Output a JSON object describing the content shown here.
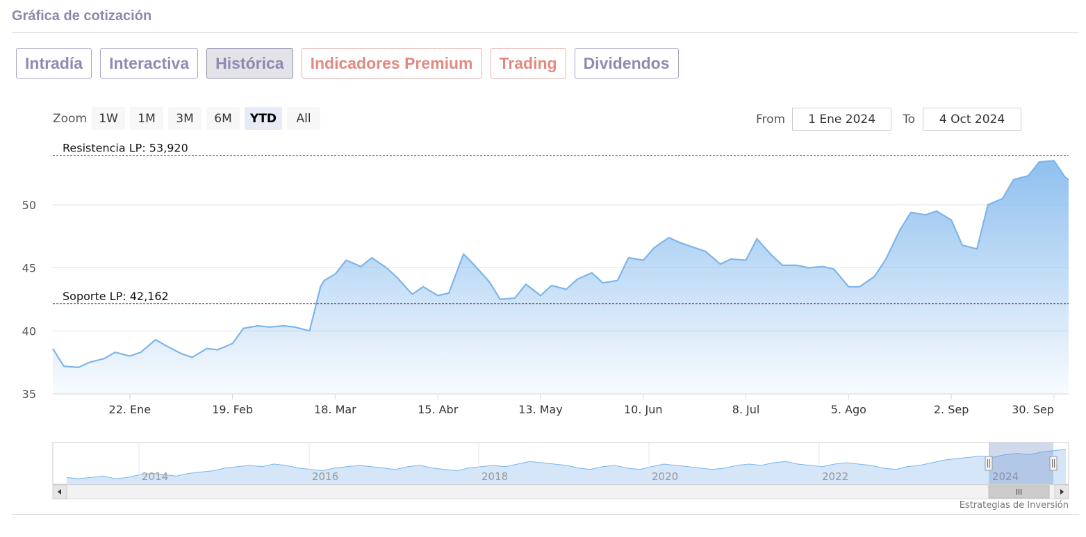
{
  "header": {
    "title": "Gráfica de cotización"
  },
  "tabs": [
    {
      "label": "Intradía",
      "state": "normal"
    },
    {
      "label": "Interactiva",
      "state": "normal"
    },
    {
      "label": "Histórica",
      "state": "active"
    },
    {
      "label": "Indicadores Premium",
      "state": "premium"
    },
    {
      "label": "Trading",
      "state": "premium"
    },
    {
      "label": "Dividendos",
      "state": "normal"
    }
  ],
  "zoom": {
    "label": "Zoom",
    "buttons": [
      "1W",
      "1M",
      "3M",
      "6M",
      "YTD",
      "All"
    ],
    "selected": "YTD"
  },
  "range": {
    "from_label": "From",
    "from_value": "1 Ene 2024",
    "to_label": "To",
    "to_value": "4 Oct 2024"
  },
  "credits": "Estrategias de Inversión",
  "colors": {
    "line": "#7cb5ec",
    "resistance": "#1a8a1a",
    "support": "#8b1a1a",
    "tab_text": "#8e8bb2",
    "premium_text": "#e28a80"
  },
  "chart_data": {
    "type": "area",
    "x_start": "2024-01-01",
    "x_end": "2024-10-04",
    "x_tick_labels": [
      "22. Ene",
      "19. Feb",
      "18. Mar",
      "15. Abr",
      "13. May",
      "10. Jun",
      "8. Jul",
      "5. Ago",
      "2. Sep",
      "30. Sep"
    ],
    "x_tick_dates": [
      "2024-01-22",
      "2024-02-19",
      "2024-03-18",
      "2024-04-15",
      "2024-05-13",
      "2024-06-10",
      "2024-07-08",
      "2024-08-05",
      "2024-09-02",
      "2024-09-30"
    ],
    "y_ticks": [
      35,
      40,
      45,
      50
    ],
    "ylim": [
      35,
      55.5
    ],
    "grid": true,
    "plot_lines": [
      {
        "label": "Resistencia LP: 53,920",
        "value": 53.92,
        "style": "dashed",
        "color": "#1a8a1a"
      },
      {
        "label": "Soporte LP: 42,162",
        "value": 42.162,
        "style": "dashed",
        "color": "#8b1a1a"
      }
    ],
    "series": [
      {
        "x": [
          "2024-01-01",
          "2024-01-04",
          "2024-01-08",
          "2024-01-11",
          "2024-01-15",
          "2024-01-18",
          "2024-01-22",
          "2024-01-25",
          "2024-01-29",
          "2024-02-01",
          "2024-02-05",
          "2024-02-08",
          "2024-02-12",
          "2024-02-15",
          "2024-02-19",
          "2024-02-22",
          "2024-02-26",
          "2024-02-29",
          "2024-03-04",
          "2024-03-07",
          "2024-03-11",
          "2024-03-14",
          "2024-03-15",
          "2024-03-18",
          "2024-03-21",
          "2024-03-25",
          "2024-03-28",
          "2024-04-01",
          "2024-04-04",
          "2024-04-08",
          "2024-04-11",
          "2024-04-15",
          "2024-04-18",
          "2024-04-22",
          "2024-04-25",
          "2024-04-29",
          "2024-05-02",
          "2024-05-06",
          "2024-05-09",
          "2024-05-13",
          "2024-05-16",
          "2024-05-20",
          "2024-05-23",
          "2024-05-27",
          "2024-05-30",
          "2024-06-03",
          "2024-06-06",
          "2024-06-10",
          "2024-06-13",
          "2024-06-17",
          "2024-06-20",
          "2024-06-24",
          "2024-06-27",
          "2024-07-01",
          "2024-07-04",
          "2024-07-08",
          "2024-07-11",
          "2024-07-15",
          "2024-07-18",
          "2024-07-22",
          "2024-07-25",
          "2024-07-29",
          "2024-08-01",
          "2024-08-05",
          "2024-08-08",
          "2024-08-12",
          "2024-08-15",
          "2024-08-19",
          "2024-08-22",
          "2024-08-26",
          "2024-08-29",
          "2024-09-02",
          "2024-09-05",
          "2024-09-09",
          "2024-09-12",
          "2024-09-16",
          "2024-09-19",
          "2024-09-23",
          "2024-09-26",
          "2024-09-30",
          "2024-10-03",
          "2024-10-04"
        ],
        "values": [
          38.6,
          37.2,
          37.1,
          37.5,
          37.8,
          38.3,
          38.0,
          38.3,
          39.3,
          38.8,
          38.2,
          37.9,
          38.6,
          38.5,
          39.0,
          40.2,
          40.4,
          40.3,
          40.4,
          40.3,
          40.0,
          43.5,
          44.0,
          44.5,
          45.6,
          45.1,
          45.8,
          45.0,
          44.2,
          42.9,
          43.5,
          42.8,
          43.0,
          46.1,
          45.2,
          43.9,
          42.5,
          42.6,
          43.7,
          42.8,
          43.6,
          43.3,
          44.1,
          44.6,
          43.8,
          44.0,
          45.8,
          45.6,
          46.6,
          47.4,
          47.0,
          46.6,
          46.3,
          45.3,
          45.7,
          45.6,
          47.3,
          46.0,
          45.2,
          45.2,
          45.0,
          45.1,
          44.9,
          43.5,
          43.5,
          44.3,
          45.6,
          48.0,
          49.4,
          49.2,
          49.5,
          48.8,
          46.8,
          46.5,
          50.0,
          50.5,
          52.0,
          52.3,
          53.4,
          53.5,
          52.2,
          52.0
        ]
      }
    ],
    "navigator": {
      "year_labels": [
        "2014",
        "2016",
        "2018",
        "2020",
        "2022",
        "2024"
      ],
      "values": [
        34,
        33,
        34,
        35,
        33,
        34,
        36,
        37,
        36,
        35,
        37,
        38,
        39,
        41,
        42,
        43,
        42,
        44,
        43,
        41,
        40,
        39,
        41,
        42,
        43,
        42,
        41,
        40,
        42,
        43,
        41,
        40,
        39,
        41,
        42,
        43,
        42,
        44,
        46,
        45,
        44,
        43,
        41,
        40,
        42,
        43,
        41,
        40,
        42,
        44,
        43,
        42,
        41,
        40,
        41,
        43,
        44,
        43,
        45,
        46,
        44,
        43,
        42,
        44,
        45,
        44,
        43,
        41,
        40,
        42,
        43,
        45,
        47,
        48,
        49,
        50,
        49,
        51,
        52,
        51,
        53,
        54,
        55
      ]
    }
  }
}
